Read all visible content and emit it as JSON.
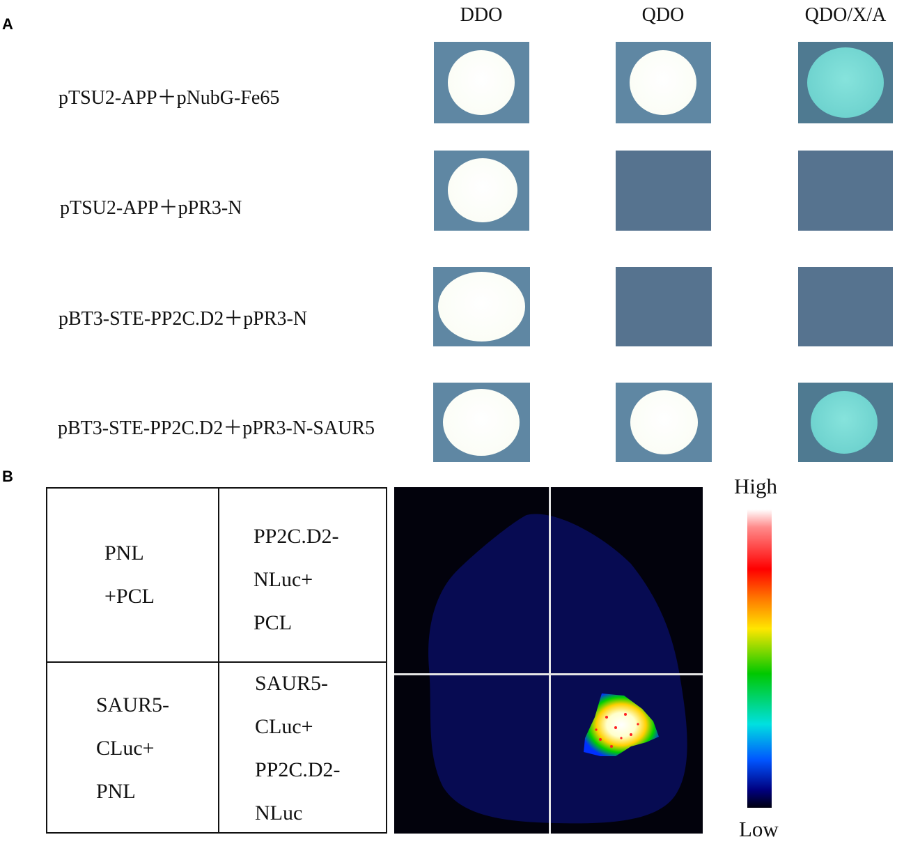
{
  "panel_a": {
    "letter": "A",
    "columns": [
      "DDO",
      "QDO",
      "QDO/X/A"
    ],
    "rows": [
      {
        "label": "pTSU2-APP＋pNubG-Fe65",
        "growth": [
          "white",
          "white",
          "blue"
        ]
      },
      {
        "label": "pTSU2-APP＋pPR3-N",
        "growth": [
          "white",
          "none",
          "none"
        ]
      },
      {
        "label": "pBT3-STE-PP2C.D2＋pPR3-N",
        "growth": [
          "white",
          "none",
          "none"
        ]
      },
      {
        "label": "pBT3-STE-PP2C.D2＋pPR3-N-SAUR5",
        "growth": [
          "white",
          "white",
          "blue"
        ]
      }
    ],
    "colors": {
      "plate": "#5f87a3",
      "colony_white": "#fbfdf6",
      "colony_blue": "#6fd3cf"
    }
  },
  "panel_b": {
    "letter": "B",
    "cells": {
      "top_left": [
        "PNL",
        "+PCL"
      ],
      "top_right": [
        "PP2C.D2-",
        "NLuc+",
        "PCL"
      ],
      "bottom_left": [
        "SAUR5-",
        "CLuc+",
        "PNL"
      ],
      "bottom_right": [
        "SAUR5-",
        "CLuc+",
        "PP2C.D2-",
        "NLuc"
      ]
    },
    "scale": {
      "high": "High",
      "low": "Low"
    }
  }
}
